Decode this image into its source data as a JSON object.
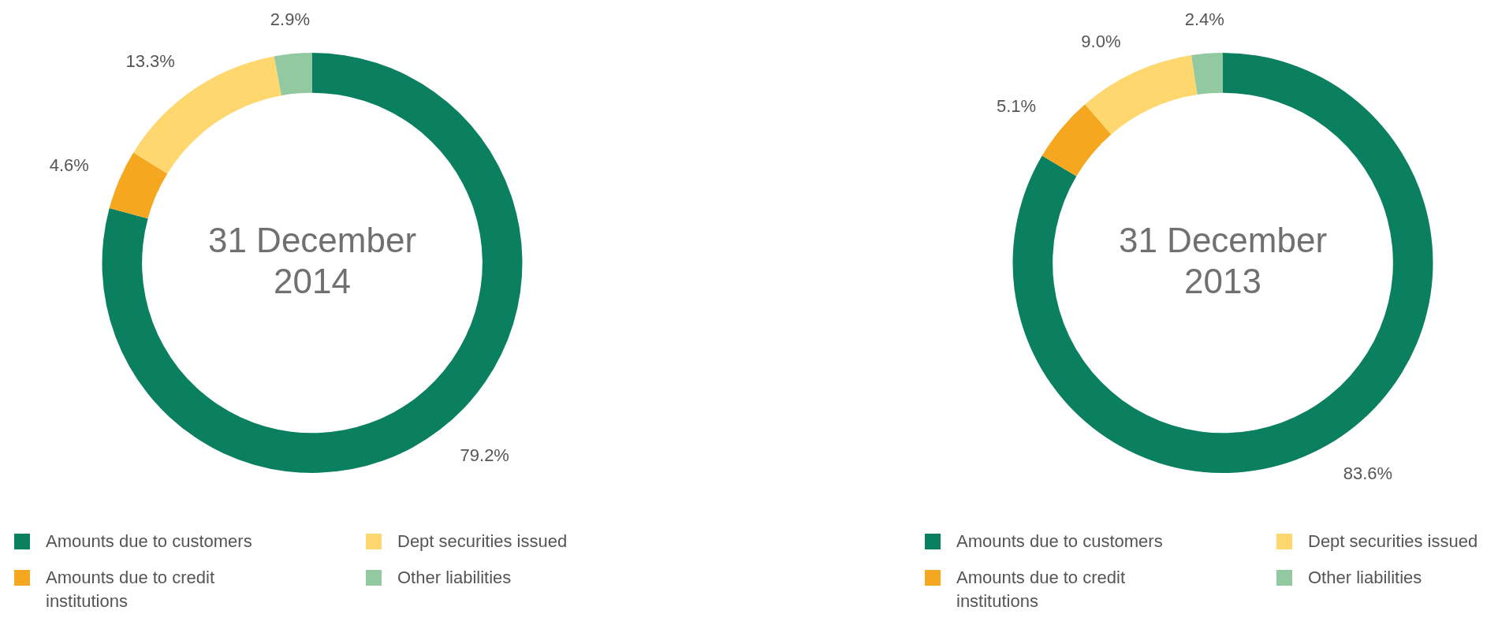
{
  "chart_data": [
    {
      "type": "donut",
      "title": "31 December 2014",
      "categories": [
        "Amounts due to customers",
        "Amounts due to credit institutions",
        "Dept securities issued",
        "Other liabilities"
      ],
      "values": [
        79.2,
        4.6,
        13.3,
        2.9
      ],
      "value_labels": [
        "79.2%",
        "4.6%",
        "13.3%",
        "2.9%"
      ],
      "colors": [
        "#0a8060",
        "#f5a81f",
        "#fed86e",
        "#93c9a0"
      ],
      "legend": "bottom"
    },
    {
      "type": "donut",
      "title": "31 December 2013",
      "categories": [
        "Amounts due to customers",
        "Amounts due to credit institutions",
        "Dept securities issued",
        "Other liabilities"
      ],
      "values": [
        83.6,
        5.1,
        9.0,
        2.4
      ],
      "value_labels": [
        "83.6%",
        "5.1%",
        "9.0%",
        "2.4%"
      ],
      "colors": [
        "#0a8060",
        "#f5a81f",
        "#fed86e",
        "#93c9a0"
      ],
      "legend": "bottom"
    }
  ]
}
